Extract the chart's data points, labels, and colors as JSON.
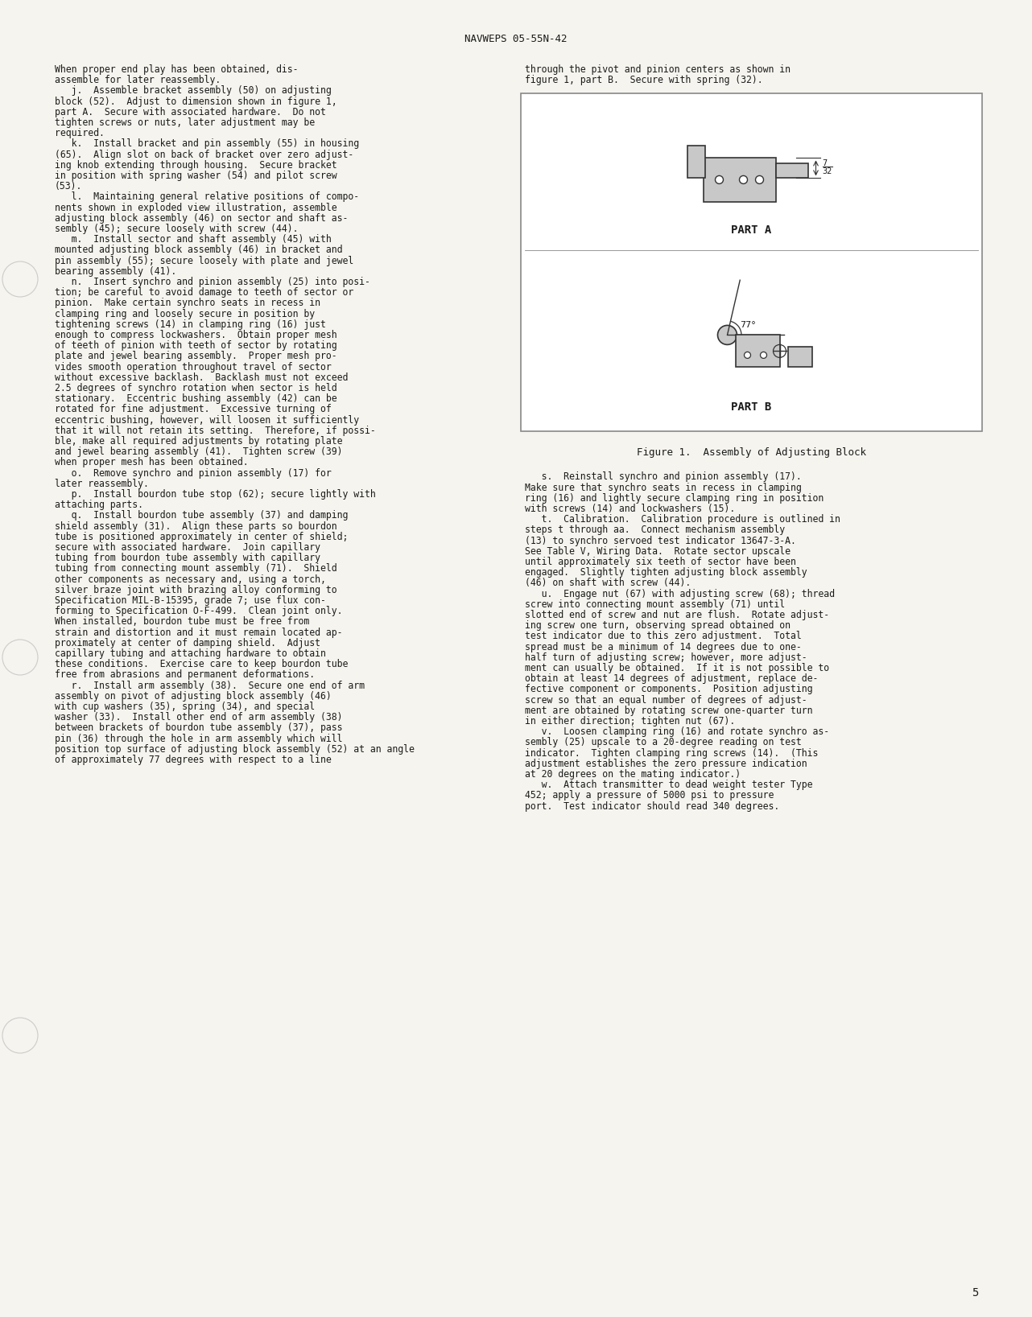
{
  "header_text": "NAVWEPS 05-55N-42",
  "page_number": "5",
  "background_color": "#f5f4ee",
  "text_color": "#1a1a1a",
  "left_column_text": [
    "When proper end play has been obtained, dis-",
    "assemble for later reassembly.",
    "   j.  Assemble bracket assembly (50) on adjusting",
    "block (52).  Adjust to dimension shown in figure 1,",
    "part A.  Secure with associated hardware.  Do not",
    "tighten screws or nuts, later adjustment may be",
    "required.",
    "   k.  Install bracket and pin assembly (55) in housing",
    "(65).  Align slot on back of bracket over zero adjust-",
    "ing knob extending through housing.  Secure bracket",
    "in position with spring washer (54) and pilot screw",
    "(53).",
    "   l.  Maintaining general relative positions of compo-",
    "nents shown in exploded view illustration, assemble",
    "adjusting block assembly (46) on sector and shaft as-",
    "sembly (45); secure loosely with screw (44).",
    "   m.  Install sector and shaft assembly (45) with",
    "mounted adjusting block assembly (46) in bracket and",
    "pin assembly (55); secure loosely with plate and jewel",
    "bearing assembly (41).",
    "   n.  Insert synchro and pinion assembly (25) into posi-",
    "tion; be careful to avoid damage to teeth of sector or",
    "pinion.  Make certain synchro seats in recess in",
    "clamping ring and loosely secure in position by",
    "tightening screws (14) in clamping ring (16) just",
    "enough to compress lockwashers.  Obtain proper mesh",
    "of teeth of pinion with teeth of sector by rotating",
    "plate and jewel bearing assembly.  Proper mesh pro-",
    "vides smooth operation throughout travel of sector",
    "without excessive backlash.  Backlash must not exceed",
    "2.5 degrees of synchro rotation when sector is held",
    "stationary.  Eccentric bushing assembly (42) can be",
    "rotated for fine adjustment.  Excessive turning of",
    "eccentric bushing, however, will loosen it sufficiently",
    "that it will not retain its setting.  Therefore, if possi-",
    "ble, make all required adjustments by rotating plate",
    "and jewel bearing assembly (41).  Tighten screw (39)",
    "when proper mesh has been obtained.",
    "   o.  Remove synchro and pinion assembly (17) for",
    "later reassembly.",
    "   p.  Install bourdon tube stop (62); secure lightly with",
    "attaching parts.",
    "   q.  Install bourdon tube assembly (37) and damping",
    "shield assembly (31).  Align these parts so bourdon",
    "tube is positioned approximately in center of shield;",
    "secure with associated hardware.  Join capillary",
    "tubing from bourdon tube assembly with capillary",
    "tubing from connecting mount assembly (71).  Shield",
    "other components as necessary and, using a torch,",
    "silver braze joint with brazing alloy conforming to",
    "Specification MIL-B-15395, grade 7; use flux con-",
    "forming to Specification O-F-499.  Clean joint only.",
    "When installed, bourdon tube must be free from",
    "strain and distortion and it must remain located ap-",
    "proximately at center of damping shield.  Adjust",
    "capillary tubing and attaching hardware to obtain",
    "these conditions.  Exercise care to keep bourdon tube",
    "free from abrasions and permanent deformations.",
    "   r.  Install arm assembly (38).  Secure one end of arm",
    "assembly on pivot of adjusting block assembly (46)",
    "with cup washers (35), spring (34), and special",
    "washer (33).  Install other end of arm assembly (38)",
    "between brackets of bourdon tube assembly (37), pass",
    "pin (36) through the hole in arm assembly which will",
    "position top surface of adjusting block assembly (52) at an angle",
    "of approximately 77 degrees with respect to a line"
  ],
  "right_column_text_top": [
    "through the pivot and pinion centers as shown in",
    "figure 1, part B.  Secure with spring (32)."
  ],
  "right_column_text_bottom": [
    "   s.  Reinstall synchro and pinion assembly (17).",
    "Make sure that synchro seats in recess in clamping",
    "ring (16) and lightly secure clamping ring in position",
    "with screws (14) and lockwashers (15).",
    "   t.  Calibration.  Calibration procedure is outlined in",
    "steps t through aa.  Connect mechanism assembly",
    "(13) to synchro servoed test indicator 13647-3-A.",
    "See Table V, Wiring Data.  Rotate sector upscale",
    "until approximately six teeth of sector have been",
    "engaged.  Slightly tighten adjusting block assembly",
    "(46) on shaft with screw (44).",
    "   u.  Engage nut (67) with adjusting screw (68); thread",
    "screw into connecting mount assembly (71) until",
    "slotted end of screw and nut are flush.  Rotate adjust-",
    "ing screw one turn, observing spread obtained on",
    "test indicator due to this zero adjustment.  Total",
    "spread must be a minimum of 14 degrees due to one-",
    "half turn of adjusting screw; however, more adjust-",
    "ment can usually be obtained.  If it is not possible to",
    "obtain at least 14 degrees of adjustment, replace de-",
    "fective component or components.  Position adjusting",
    "screw so that an equal number of degrees of adjust-",
    "ment are obtained by rotating screw one-quarter turn",
    "in either direction; tighten nut (67).",
    "   v.  Loosen clamping ring (16) and rotate synchro as-",
    "sembly (25) upscale to a 20-degree reading on test",
    "indicator.  Tighten clamping ring screws (14).  (This",
    "adjustment establishes the zero pressure indication",
    "at 20 degrees on the mating indicator.)",
    "   w.  Attach transmitter to dead weight tester Type",
    "452; apply a pressure of 5000 psi to pressure",
    "port.  Test indicator should read 340 degrees."
  ],
  "figure_caption": "Figure 1.  Assembly of Adjusting Block",
  "figure_box_color": "#d0cfc8",
  "part_a_label": "PART A",
  "part_b_label": "PART B"
}
